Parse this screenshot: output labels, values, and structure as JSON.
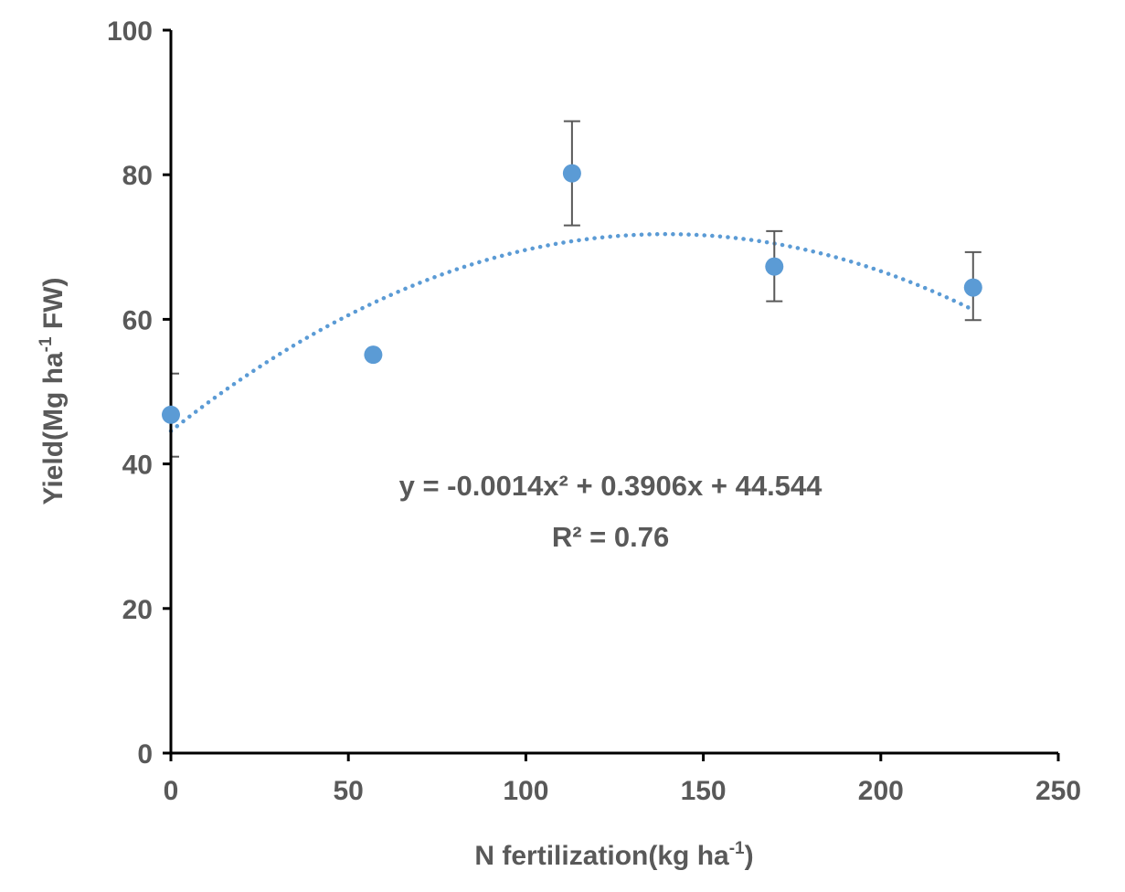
{
  "chart_data": {
    "type": "scatter",
    "xlabel": "N fertilization(kg ha",
    "xlabel_sup": "-1",
    "xlabel_tail": ")",
    "ylabel": "Yield(Mg ha",
    "ylabel_sup": "-1",
    "ylabel_tail": " FW)",
    "xlim": [
      0,
      250
    ],
    "ylim": [
      0,
      100
    ],
    "x_ticks": [
      0,
      50,
      100,
      150,
      200,
      250
    ],
    "y_ticks": [
      0,
      20,
      40,
      60,
      80,
      100
    ],
    "grid": false,
    "series": [
      {
        "color": "#5b9bd5",
        "points": [
          {
            "x": 0,
            "y": 46.8,
            "err_low": 41,
            "err_high": 52.5
          },
          {
            "x": 57,
            "y": 55.1
          },
          {
            "x": 113,
            "y": 80.2,
            "err_low": 73,
            "err_high": 87.4
          },
          {
            "x": 170,
            "y": 67.3,
            "err_low": 62.5,
            "err_high": 72.2
          },
          {
            "x": 226,
            "y": 64.4,
            "err_low": 59.9,
            "err_high": 69.3
          }
        ]
      }
    ],
    "trendline": {
      "type": "polynomial",
      "coefficients": [
        -0.0014,
        0.3906,
        44.544
      ],
      "x_range": [
        0,
        226
      ],
      "style": "dotted",
      "color": "#5b9bd5"
    },
    "equation_text": "y = -0.0014x² + 0.3906x + 44.544",
    "r2_text": "R² = 0.76",
    "error_bar_color": "#595959",
    "axis_color": "#000000"
  }
}
